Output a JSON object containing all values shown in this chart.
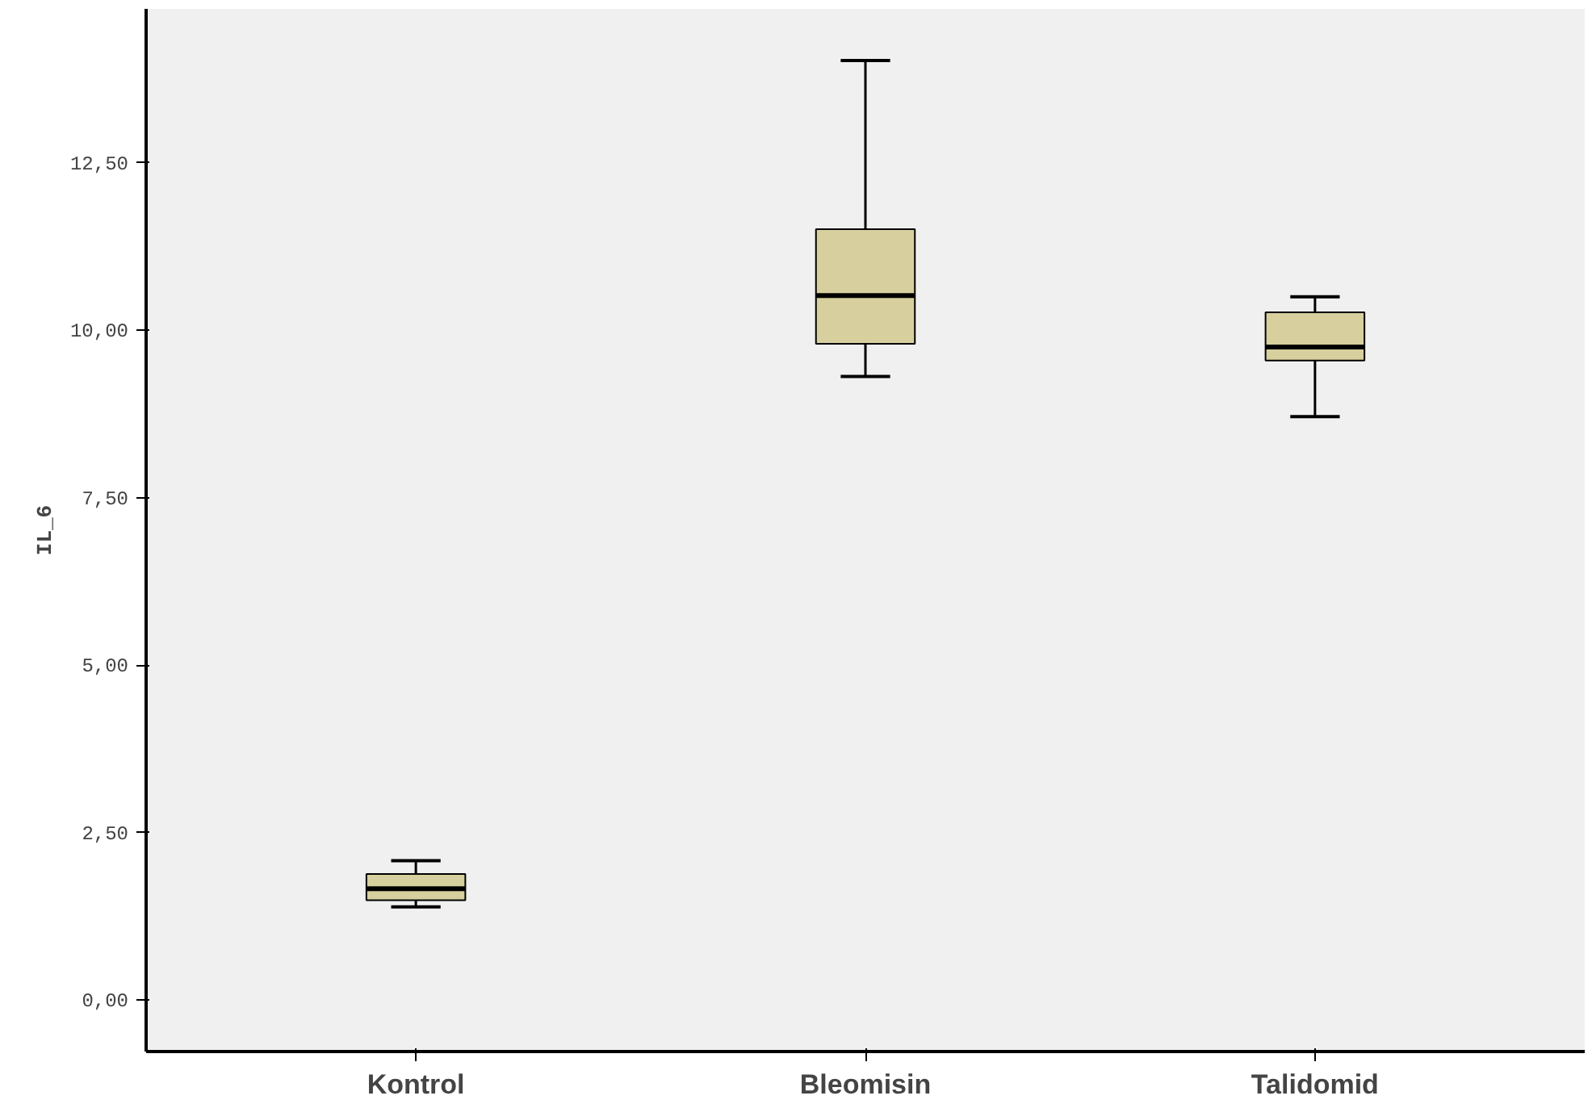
{
  "chart_data": {
    "type": "box",
    "ylabel": "IL_6",
    "categories": [
      "Kontrol",
      "Bleomisin",
      "Talidomid"
    ],
    "boxes": [
      {
        "low": 1.39,
        "q1": 1.49,
        "median": 1.66,
        "q3": 1.88,
        "high": 2.08
      },
      {
        "low": 9.31,
        "q1": 9.8,
        "median": 10.52,
        "q3": 11.51,
        "high": 14.03
      },
      {
        "low": 8.71,
        "q1": 9.55,
        "median": 9.75,
        "q3": 10.27,
        "high": 10.5
      }
    ],
    "color": "#d7cf9d",
    "ylim": [
      -0.77,
      14.8
    ],
    "yticks": [
      {
        "value": 0,
        "label": "0,00"
      },
      {
        "value": 2.5,
        "label": "2,50"
      },
      {
        "value": 5,
        "label": "5,00"
      },
      {
        "value": 7.5,
        "label": "7,50"
      },
      {
        "value": 10,
        "label": "10,00"
      },
      {
        "value": 12.5,
        "label": "12,50"
      }
    ],
    "grid": false
  }
}
